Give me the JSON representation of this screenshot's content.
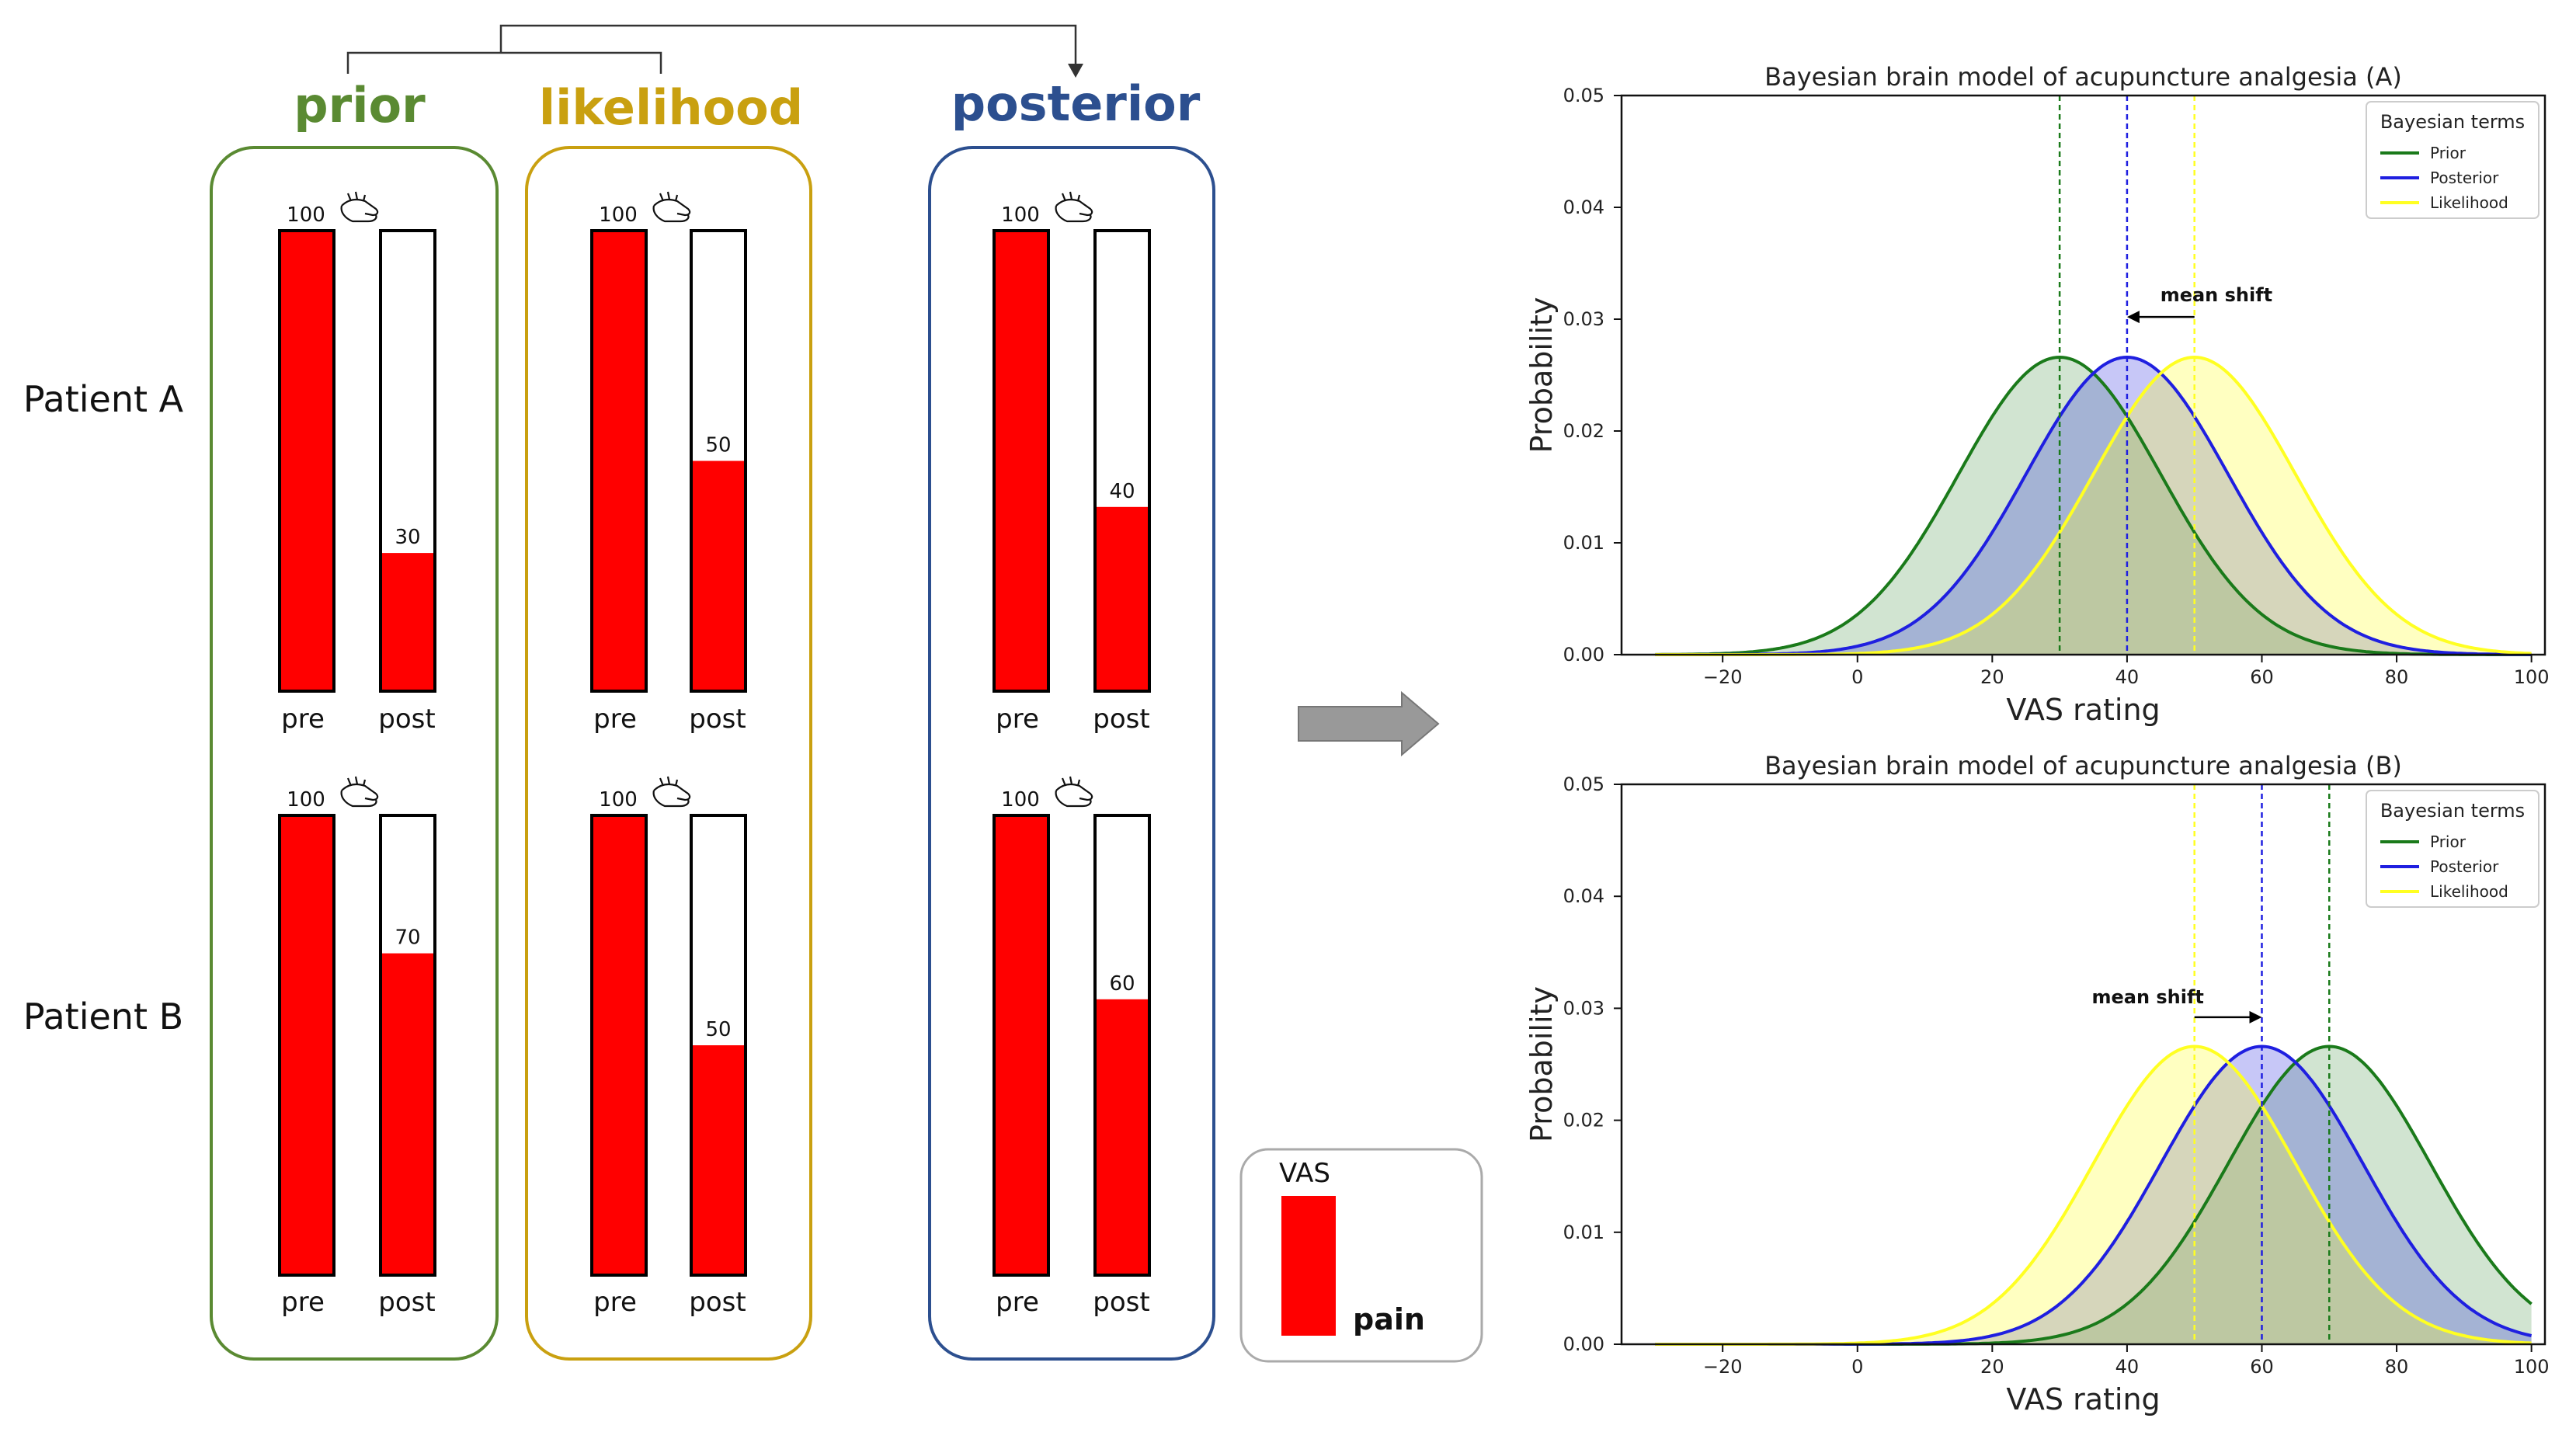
{
  "headers": {
    "prior": "prior",
    "likelihood": "likelihood",
    "posterior": "posterior"
  },
  "patients": [
    "Patient A",
    "Patient B"
  ],
  "bar_labels": {
    "pre": "pre",
    "post": "post"
  },
  "bars": {
    "pre_value": 100,
    "pre_label": "100",
    "post_values": {
      "A": {
        "prior": 30,
        "likelihood": 50,
        "posterior": 40
      },
      "B": {
        "prior": 70,
        "likelihood": 50,
        "posterior": 60
      }
    },
    "post_labels": {
      "A": {
        "prior": "30",
        "likelihood": "50",
        "posterior": "40"
      },
      "B": {
        "prior": "70",
        "likelihood": "50",
        "posterior": "60"
      }
    }
  },
  "legend_box": {
    "title": "VAS",
    "label": "pain"
  },
  "colors": {
    "prior": "#5a8a32",
    "likelihood": "#c9a010",
    "posterior": "#2c4f8f",
    "pain": "#ff0000",
    "arrow": "#999999"
  },
  "chart_data": [
    {
      "type": "line",
      "title": "Bayesian brain model of acupuncture analgesia (A)",
      "xlabel": "VAS rating",
      "ylabel": "Probability",
      "xlim": [
        -35,
        102
      ],
      "ylim": [
        0,
        0.05
      ],
      "xticks": [
        -20,
        0,
        20,
        40,
        60,
        80,
        100
      ],
      "xtick_labels": [
        "−20",
        "0",
        "20",
        "40",
        "60",
        "80",
        "100"
      ],
      "yticks": [
        0.0,
        0.01,
        0.02,
        0.03,
        0.04,
        0.05
      ],
      "ytick_labels": [
        "0.00",
        "0.01",
        "0.02",
        "0.03",
        "0.04",
        "0.05"
      ],
      "sigma": 15,
      "legend_title": "Bayesian terms",
      "legend_position": "top-right",
      "series": [
        {
          "name": "Prior",
          "mean": 30,
          "color": "#1a7a1a"
        },
        {
          "name": "Posterior",
          "mean": 40,
          "color": "#1f1fe0"
        },
        {
          "name": "Likelihood",
          "mean": 50,
          "color": "#ffff22"
        }
      ],
      "annotation": "mean shift"
    },
    {
      "type": "line",
      "title": "Bayesian brain model of acupuncture analgesia (B)",
      "xlabel": "VAS rating",
      "ylabel": "Probability",
      "xlim": [
        -35,
        102
      ],
      "ylim": [
        0,
        0.05
      ],
      "xticks": [
        -20,
        0,
        20,
        40,
        60,
        80,
        100
      ],
      "xtick_labels": [
        "−20",
        "0",
        "20",
        "40",
        "60",
        "80",
        "100"
      ],
      "yticks": [
        0.0,
        0.01,
        0.02,
        0.03,
        0.04,
        0.05
      ],
      "ytick_labels": [
        "0.00",
        "0.01",
        "0.02",
        "0.03",
        "0.04",
        "0.05"
      ],
      "sigma": 15,
      "legend_title": "Bayesian terms",
      "legend_position": "top-right",
      "series": [
        {
          "name": "Prior",
          "mean": 70,
          "color": "#1a7a1a"
        },
        {
          "name": "Posterior",
          "mean": 60,
          "color": "#1f1fe0"
        },
        {
          "name": "Likelihood",
          "mean": 50,
          "color": "#ffff22"
        }
      ],
      "annotation": "mean shift"
    }
  ]
}
